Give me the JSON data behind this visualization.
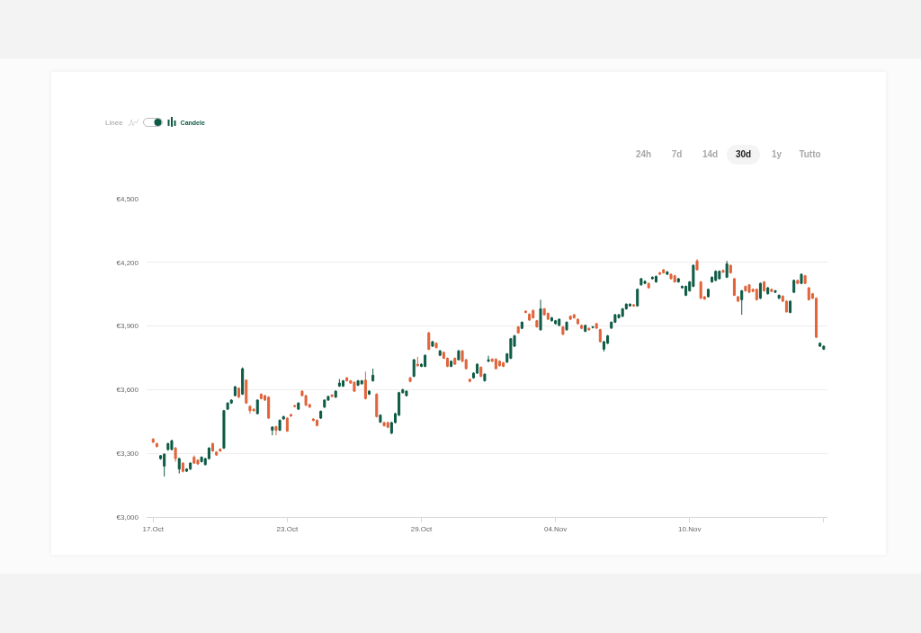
{
  "chart_data": {
    "type": "candlestick",
    "annotations": [
      "Linee",
      "Candele",
      "24h",
      "7d",
      "14d",
      "30d",
      "1y",
      "Tutto"
    ],
    "ylim": [
      3000,
      4500
    ],
    "yticks": [
      {
        "value": 3000,
        "label": "€3,000"
      },
      {
        "value": 3300,
        "label": "€3,300"
      },
      {
        "value": 3600,
        "label": "€3,600"
      },
      {
        "value": 3900,
        "label": "€3,900"
      },
      {
        "value": 4200,
        "label": "€4,200"
      },
      {
        "value": 4500,
        "label": "€4,500"
      }
    ],
    "xlim": [
      "--10-16T17:00",
      "--11-16T04:00"
    ],
    "xticks": [
      {
        "value": "--10-17",
        "label": "17.Oct"
      },
      {
        "value": "--10-23",
        "label": "23.Oct"
      },
      {
        "value": "--10-29",
        "label": "29.Oct"
      },
      {
        "value": "--11-04",
        "label": "04.Nov"
      },
      {
        "value": "--11-10",
        "label": "10.Nov"
      },
      {
        "value": "--11-16",
        "label": null
      }
    ],
    "grid": "y",
    "x": [
      "--10-17T00:00",
      "--10-17T04:00",
      "--10-17T08:00",
      "--10-17T12:00",
      "--10-17T16:00",
      "--10-17T20:00",
      "--10-18T00:00",
      "--10-18T04:00",
      "--10-18T08:00",
      "--10-18T12:00",
      "--10-18T16:00",
      "--10-18T20:00",
      "--10-19T00:00",
      "--10-19T04:00",
      "--10-19T08:00",
      "--10-19T12:00",
      "--10-19T16:00",
      "--10-19T20:00",
      "--10-20T00:00",
      "--10-20T04:00",
      "--10-20T08:00",
      "--10-20T12:00",
      "--10-20T16:00",
      "--10-20T20:00",
      "--10-21T00:00",
      "--10-21T04:00",
      "--10-21T08:00",
      "--10-21T12:00",
      "--10-21T16:00",
      "--10-21T20:00",
      "--10-22T00:00",
      "--10-22T04:00",
      "--10-22T08:00",
      "--10-22T12:00",
      "--10-22T16:00",
      "--10-22T20:00",
      "--10-23T00:00",
      "--10-23T04:00",
      "--10-23T08:00",
      "--10-23T12:00",
      "--10-23T16:00",
      "--10-23T20:00",
      "--10-24T00:00",
      "--10-24T04:00",
      "--10-24T08:00",
      "--10-24T12:00",
      "--10-24T16:00",
      "--10-24T20:00",
      "--10-25T00:00",
      "--10-25T04:00",
      "--10-25T08:00",
      "--10-25T12:00",
      "--10-25T16:00",
      "--10-25T20:00",
      "--10-26T00:00",
      "--10-26T04:00",
      "--10-26T08:00",
      "--10-26T12:00",
      "--10-26T16:00",
      "--10-26T20:00",
      "--10-27T00:00",
      "--10-27T04:00",
      "--10-27T08:00",
      "--10-27T12:00",
      "--10-27T16:00",
      "--10-27T20:00",
      "--10-28T00:00",
      "--10-28T04:00",
      "--10-28T08:00",
      "--10-28T12:00",
      "--10-28T16:00",
      "--10-28T20:00",
      "--10-29T00:00",
      "--10-29T04:00",
      "--10-29T08:00",
      "--10-29T12:00",
      "--10-29T16:00",
      "--10-29T20:00",
      "--10-30T00:00",
      "--10-30T04:00",
      "--10-30T08:00",
      "--10-30T12:00",
      "--10-30T16:00",
      "--10-30T20:00",
      "--10-31T00:00",
      "--10-31T04:00",
      "--10-31T08:00",
      "--10-31T12:00",
      "--10-31T16:00",
      "--10-31T20:00",
      "--11-01T00:00",
      "--11-01T04:00",
      "--11-01T08:00",
      "--11-01T12:00",
      "--11-01T16:00",
      "--11-01T20:00",
      "--11-02T00:00",
      "--11-02T04:00",
      "--11-02T08:00",
      "--11-02T12:00",
      "--11-02T16:00",
      "--11-02T20:00",
      "--11-03T00:00",
      "--11-03T04:00",
      "--11-03T08:00",
      "--11-03T12:00",
      "--11-03T16:00",
      "--11-03T20:00",
      "--11-04T00:00",
      "--11-04T04:00",
      "--11-04T08:00",
      "--11-04T12:00",
      "--11-04T16:00",
      "--11-04T20:00",
      "--11-05T00:00",
      "--11-05T04:00",
      "--11-05T08:00",
      "--11-05T12:00",
      "--11-05T16:00",
      "--11-05T20:00",
      "--11-06T00:00",
      "--11-06T04:00",
      "--11-06T08:00",
      "--11-06T12:00",
      "--11-06T16:00",
      "--11-06T20:00",
      "--11-07T00:00",
      "--11-07T04:00",
      "--11-07T08:00",
      "--11-07T12:00",
      "--11-07T16:00",
      "--11-07T20:00",
      "--11-08T00:00",
      "--11-08T04:00",
      "--11-08T08:00",
      "--11-08T12:00",
      "--11-08T16:00",
      "--11-08T20:00",
      "--11-09T00:00",
      "--11-09T04:00",
      "--11-09T08:00",
      "--11-09T12:00",
      "--11-09T16:00",
      "--11-09T20:00",
      "--11-10T00:00",
      "--11-10T04:00",
      "--11-10T08:00",
      "--11-10T12:00",
      "--11-10T16:00",
      "--11-10T20:00",
      "--11-11T00:00",
      "--11-11T04:00",
      "--11-11T08:00",
      "--11-11T12:00",
      "--11-11T16:00",
      "--11-11T20:00",
      "--11-12T00:00",
      "--11-12T04:00",
      "--11-12T08:00",
      "--11-12T12:00",
      "--11-12T16:00",
      "--11-12T20:00",
      "--11-13T00:00",
      "--11-13T04:00",
      "--11-13T08:00",
      "--11-13T12:00",
      "--11-13T16:00",
      "--11-13T20:00",
      "--11-14T00:00",
      "--11-14T04:00",
      "--11-14T08:00",
      "--11-14T12:00",
      "--11-14T16:00",
      "--11-14T20:00",
      "--11-15T00:00",
      "--11-15T04:00",
      "--11-15T08:00",
      "--11-15T12:00",
      "--11-15T16:00",
      "--11-15T20:00",
      "--11-16T00:00"
    ],
    "ohlc": [
      [
        3367,
        3372,
        3348,
        3353
      ],
      [
        3346,
        3350,
        3328,
        3332
      ],
      [
        3275,
        3292,
        3270,
        3289
      ],
      [
        3240,
        3300,
        3191,
        3296
      ],
      [
        3318,
        3350,
        3312,
        3346
      ],
      [
        3318,
        3364,
        3314,
        3360
      ],
      [
        3325,
        3330,
        3260,
        3275
      ],
      [
        3226,
        3280,
        3205,
        3275
      ],
      [
        3254,
        3258,
        3210,
        3215
      ],
      [
        3216,
        3230,
        3212,
        3226
      ],
      [
        3226,
        3258,
        3222,
        3254
      ],
      [
        3282,
        3290,
        3250,
        3254
      ],
      [
        3268,
        3272,
        3246,
        3250
      ],
      [
        3261,
        3286,
        3257,
        3282
      ],
      [
        3247,
        3279,
        3243,
        3275
      ],
      [
        3275,
        3329,
        3271,
        3325
      ],
      [
        3346,
        3350,
        3307,
        3311
      ],
      [
        3306,
        3310,
        3288,
        3292
      ],
      [
        3320,
        3324,
        3307,
        3311
      ],
      [
        3325,
        3505,
        3321,
        3501
      ],
      [
        3508,
        3541,
        3504,
        3537
      ],
      [
        3537,
        3555,
        3533,
        3551
      ],
      [
        3572,
        3618,
        3568,
        3614
      ],
      [
        3607,
        3611,
        3561,
        3565
      ],
      [
        3579,
        3705,
        3575,
        3699
      ],
      [
        3645,
        3649,
        3533,
        3537
      ],
      [
        3522,
        3526,
        3487,
        3501
      ],
      [
        3508,
        3512,
        3497,
        3501
      ],
      [
        3487,
        3555,
        3483,
        3551
      ],
      [
        3579,
        3583,
        3554,
        3558
      ],
      [
        3572,
        3576,
        3547,
        3551
      ],
      [
        3565,
        3569,
        3462,
        3466
      ],
      [
        3409,
        3428,
        3385,
        3424
      ],
      [
        3426,
        3430,
        3385,
        3409
      ],
      [
        3409,
        3460,
        3405,
        3456
      ],
      [
        3462,
        3477,
        3458,
        3473
      ],
      [
        3466,
        3470,
        3401,
        3405
      ],
      [
        3483,
        3487,
        3472,
        3476
      ],
      [
        3525,
        3529,
        3517,
        3521
      ],
      [
        3508,
        3541,
        3504,
        3537
      ],
      [
        3593,
        3597,
        3568,
        3572
      ],
      [
        3572,
        3576,
        3523,
        3527
      ],
      [
        3530,
        3534,
        3514,
        3518
      ],
      [
        3462,
        3466,
        3451,
        3455
      ],
      [
        3456,
        3460,
        3427,
        3431
      ],
      [
        3466,
        3502,
        3462,
        3498
      ],
      [
        3518,
        3555,
        3514,
        3551
      ],
      [
        3551,
        3572,
        3547,
        3568
      ],
      [
        3575,
        3579,
        3564,
        3568
      ],
      [
        3565,
        3597,
        3561,
        3593
      ],
      [
        3617,
        3650,
        3613,
        3631
      ],
      [
        3617,
        3646,
        3613,
        3642
      ],
      [
        3656,
        3660,
        3638,
        3642
      ],
      [
        3642,
        3646,
        3627,
        3631
      ],
      [
        3635,
        3639,
        3589,
        3593
      ],
      [
        3621,
        3646,
        3617,
        3642
      ],
      [
        3628,
        3646,
        3624,
        3642
      ],
      [
        3645,
        3685,
        3554,
        3558
      ],
      [
        3579,
        3597,
        3575,
        3593
      ],
      [
        3642,
        3699,
        3638,
        3668
      ],
      [
        3579,
        3583,
        3469,
        3473
      ],
      [
        3447,
        3484,
        3443,
        3480
      ],
      [
        3445,
        3449,
        3426,
        3430
      ],
      [
        3445,
        3449,
        3419,
        3423
      ],
      [
        3395,
        3449,
        3391,
        3445
      ],
      [
        3445,
        3491,
        3441,
        3487
      ],
      [
        3480,
        3590,
        3476,
        3586
      ],
      [
        3586,
        3604,
        3582,
        3600
      ],
      [
        3572,
        3597,
        3568,
        3593
      ],
      [
        3656,
        3660,
        3635,
        3639
      ],
      [
        3663,
        3745,
        3659,
        3741
      ],
      [
        3720,
        3755,
        3709,
        3713
      ],
      [
        3710,
        3724,
        3706,
        3720
      ],
      [
        3710,
        3766,
        3706,
        3762
      ],
      [
        3868,
        3872,
        3786,
        3790
      ],
      [
        3805,
        3830,
        3801,
        3826
      ],
      [
        3819,
        3823,
        3794,
        3798
      ],
      [
        3762,
        3787,
        3758,
        3783
      ],
      [
        3776,
        3780,
        3744,
        3748
      ],
      [
        3748,
        3752,
        3706,
        3710
      ],
      [
        3710,
        3738,
        3706,
        3734
      ],
      [
        3748,
        3752,
        3716,
        3720
      ],
      [
        3741,
        3787,
        3737,
        3783
      ],
      [
        3783,
        3787,
        3730,
        3734
      ],
      [
        3741,
        3745,
        3695,
        3699
      ],
      [
        3649,
        3653,
        3635,
        3639
      ],
      [
        3656,
        3682,
        3652,
        3678
      ],
      [
        3678,
        3724,
        3674,
        3720
      ],
      [
        3706,
        3710,
        3659,
        3663
      ],
      [
        3642,
        3677,
        3638,
        3673
      ],
      [
        3734,
        3760,
        3730,
        3741
      ],
      [
        3744,
        3748,
        3730,
        3734
      ],
      [
        3744,
        3748,
        3695,
        3699
      ],
      [
        3734,
        3738,
        3709,
        3713
      ],
      [
        3727,
        3731,
        3706,
        3710
      ],
      [
        3730,
        3773,
        3726,
        3769
      ],
      [
        3748,
        3844,
        3744,
        3840
      ],
      [
        3805,
        3858,
        3801,
        3854
      ],
      [
        3896,
        3900,
        3864,
        3868
      ],
      [
        3889,
        3922,
        3885,
        3918
      ],
      [
        3970,
        3974,
        3960,
        3964
      ],
      [
        3956,
        3960,
        3924,
        3928
      ],
      [
        3974,
        3978,
        3935,
        3939
      ],
      [
        3925,
        3929,
        3892,
        3896
      ],
      [
        3882,
        4024,
        3878,
        3981
      ],
      [
        3981,
        3985,
        3949,
        3953
      ],
      [
        3960,
        3964,
        3928,
        3932
      ],
      [
        3925,
        3943,
        3921,
        3939
      ],
      [
        3911,
        3929,
        3907,
        3925
      ],
      [
        3903,
        3936,
        3899,
        3932
      ],
      [
        3896,
        3900,
        3857,
        3861
      ],
      [
        3882,
        3922,
        3878,
        3918
      ],
      [
        3946,
        3950,
        3928,
        3932
      ],
      [
        3953,
        3957,
        3935,
        3939
      ],
      [
        3932,
        3936,
        3907,
        3911
      ],
      [
        3903,
        3907,
        3885,
        3889
      ],
      [
        3875,
        3907,
        3871,
        3903
      ],
      [
        3889,
        3893,
        3878,
        3882
      ],
      [
        3893,
        3900,
        3889,
        3896
      ],
      [
        3911,
        3915,
        3886,
        3890
      ],
      [
        3883,
        3887,
        3822,
        3826
      ],
      [
        3791,
        3830,
        3780,
        3826
      ],
      [
        3819,
        3858,
        3815,
        3854
      ],
      [
        3890,
        3922,
        3886,
        3918
      ],
      [
        3918,
        3957,
        3914,
        3953
      ],
      [
        3939,
        3957,
        3935,
        3953
      ],
      [
        3946,
        3985,
        3942,
        3981
      ],
      [
        3981,
        4007,
        3977,
        4003
      ],
      [
        3995,
        4007,
        3991,
        4003
      ],
      [
        4000,
        4004,
        3991,
        3995
      ],
      [
        3995,
        4077,
        3991,
        4073
      ],
      [
        4094,
        4127,
        4090,
        4123
      ],
      [
        4101,
        4115,
        4097,
        4111
      ],
      [
        4101,
        4105,
        4076,
        4080
      ],
      [
        4123,
        4134,
        4119,
        4130
      ],
      [
        4108,
        4138,
        4104,
        4134
      ],
      [
        4151,
        4155,
        4140,
        4144
      ],
      [
        4165,
        4169,
        4147,
        4151
      ],
      [
        4144,
        4159,
        4140,
        4155
      ],
      [
        4144,
        4148,
        4119,
        4123
      ],
      [
        4137,
        4141,
        4104,
        4108
      ],
      [
        4108,
        4127,
        4104,
        4123
      ],
      [
        4080,
        4091,
        4076,
        4087
      ],
      [
        4045,
        4091,
        4041,
        4087
      ],
      [
        4066,
        4112,
        4062,
        4108
      ],
      [
        4087,
        4190,
        4083,
        4186
      ],
      [
        4207,
        4215,
        4161,
        4165
      ],
      [
        4108,
        4112,
        4027,
        4031
      ],
      [
        4038,
        4042,
        4023,
        4027
      ],
      [
        4038,
        4077,
        4034,
        4073
      ],
      [
        4108,
        4134,
        4104,
        4130
      ],
      [
        4115,
        4162,
        4111,
        4158
      ],
      [
        4123,
        4162,
        4119,
        4158
      ],
      [
        4162,
        4166,
        4150,
        4154
      ],
      [
        4130,
        4207,
        4126,
        4193
      ],
      [
        4186,
        4190,
        4147,
        4151
      ],
      [
        4123,
        4127,
        4041,
        4045
      ],
      [
        4038,
        4042,
        4013,
        4017
      ],
      [
        4024,
        4070,
        3953,
        4066
      ],
      [
        4087,
        4091,
        4062,
        4066
      ],
      [
        4094,
        4098,
        4055,
        4059
      ],
      [
        4073,
        4077,
        4059,
        4063
      ],
      [
        4073,
        4077,
        4020,
        4024
      ],
      [
        4031,
        4105,
        4027,
        4101
      ],
      [
        4108,
        4112,
        4062,
        4066
      ],
      [
        4052,
        4084,
        4048,
        4080
      ],
      [
        4073,
        4077,
        4059,
        4063
      ],
      [
        4059,
        4070,
        4055,
        4066
      ],
      [
        4031,
        4049,
        4027,
        4045
      ],
      [
        4041,
        4045,
        4013,
        4017
      ],
      [
        4017,
        4021,
        3963,
        3967
      ],
      [
        3964,
        4021,
        3960,
        4017
      ],
      [
        4059,
        4119,
        4055,
        4115
      ],
      [
        4115,
        4119,
        4097,
        4101
      ],
      [
        4101,
        4148,
        4097,
        4144
      ],
      [
        4137,
        4141,
        4097,
        4101
      ],
      [
        4080,
        4084,
        4020,
        4024
      ],
      [
        4052,
        4056,
        4027,
        4031
      ],
      [
        4031,
        4035,
        3843,
        3847
      ],
      [
        3805,
        3823,
        3801,
        3819
      ],
      [
        3791,
        3809,
        3787,
        3805
      ]
    ]
  }
}
